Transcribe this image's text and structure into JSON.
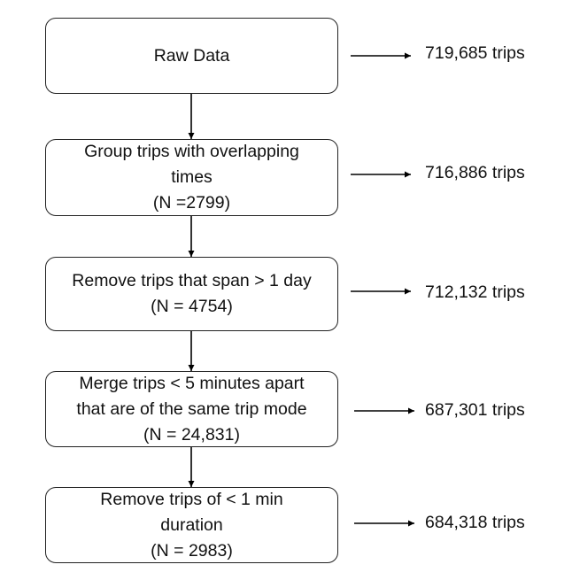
{
  "steps": [
    {
      "lines": [
        "Raw Data"
      ],
      "result": "719,685 trips"
    },
    {
      "lines": [
        "Group trips with overlapping",
        "times",
        "(N =2799)"
      ],
      "result": "716,886 trips"
    },
    {
      "lines": [
        "Remove trips that span > 1 day",
        "(N = 4754)"
      ],
      "result": "712,132 trips"
    },
    {
      "lines": [
        "Merge trips < 5 minutes apart",
        "that are of the same trip mode",
        "(N = 24,831)"
      ],
      "result": "687,301 trips"
    },
    {
      "lines": [
        "Remove trips of < 1 min",
        "duration",
        "(N = 2983)"
      ],
      "result": "684,318 trips"
    }
  ]
}
